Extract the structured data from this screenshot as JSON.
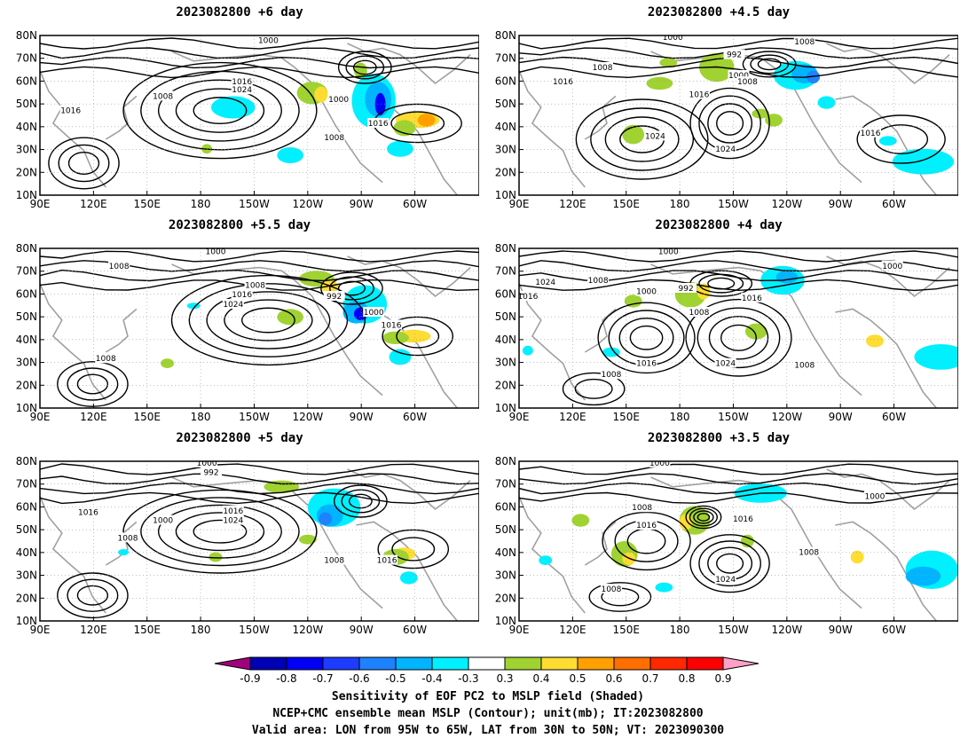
{
  "panels": [
    {
      "title": "2023082800 +6 day",
      "contours": [
        {
          "label": "1000",
          "tx": 0.52,
          "ty": 0.03
        },
        {
          "label": "1016",
          "tx": 0.46,
          "ty": 0.29
        },
        {
          "label": "1024",
          "tx": 0.46,
          "ty": 0.34
        },
        {
          "label": "1008",
          "tx": 0.28,
          "ty": 0.38
        },
        {
          "label": "1016",
          "tx": 0.07,
          "ty": 0.47
        },
        {
          "label": "1000",
          "tx": 0.68,
          "ty": 0.4
        },
        {
          "label": "1016",
          "tx": 0.77,
          "ty": 0.55
        },
        {
          "label": "1008",
          "tx": 0.67,
          "ty": 0.64
        }
      ]
    },
    {
      "title": "2023082800 +4.5 day",
      "contours": [
        {
          "label": "1000",
          "tx": 0.35,
          "ty": 0.01
        },
        {
          "label": "1008",
          "tx": 0.65,
          "ty": 0.04
        },
        {
          "label": "992",
          "tx": 0.49,
          "ty": 0.12
        },
        {
          "label": "1008",
          "tx": 0.19,
          "ty": 0.2
        },
        {
          "label": "1016",
          "tx": 0.1,
          "ty": 0.29
        },
        {
          "label": "1000",
          "tx": 0.5,
          "ty": 0.25
        },
        {
          "label": "1008",
          "tx": 0.52,
          "ty": 0.29
        },
        {
          "label": "1016",
          "tx": 0.41,
          "ty": 0.37
        },
        {
          "label": "1024",
          "tx": 0.31,
          "ty": 0.63
        },
        {
          "label": "1024",
          "tx": 0.47,
          "ty": 0.71
        },
        {
          "label": "1016",
          "tx": 0.8,
          "ty": 0.61
        }
      ]
    },
    {
      "title": "2023082800 +5.5 day",
      "contours": [
        {
          "label": "1000",
          "tx": 0.4,
          "ty": 0.02
        },
        {
          "label": "1008",
          "tx": 0.18,
          "ty": 0.11
        },
        {
          "label": "1008",
          "tx": 0.49,
          "ty": 0.23
        },
        {
          "label": "1016",
          "tx": 0.46,
          "ty": 0.29
        },
        {
          "label": "1024",
          "tx": 0.44,
          "ty": 0.35
        },
        {
          "label": "992",
          "tx": 0.67,
          "ty": 0.3
        },
        {
          "label": "1000",
          "tx": 0.76,
          "ty": 0.4
        },
        {
          "label": "1016",
          "tx": 0.8,
          "ty": 0.48
        },
        {
          "label": "1008",
          "tx": 0.15,
          "ty": 0.69
        }
      ]
    },
    {
      "title": "2023082800 +4 day",
      "contours": [
        {
          "label": "1000",
          "tx": 0.34,
          "ty": 0.02
        },
        {
          "label": "1024",
          "tx": 0.06,
          "ty": 0.21
        },
        {
          "label": "1008",
          "tx": 0.18,
          "ty": 0.2
        },
        {
          "label": "1016",
          "tx": 0.02,
          "ty": 0.3
        },
        {
          "label": "1000",
          "tx": 0.29,
          "ty": 0.27
        },
        {
          "label": "992",
          "tx": 0.38,
          "ty": 0.25
        },
        {
          "label": "1008",
          "tx": 0.41,
          "ty": 0.4
        },
        {
          "label": "1016",
          "tx": 0.53,
          "ty": 0.31
        },
        {
          "label": "1000",
          "tx": 0.85,
          "ty": 0.11
        },
        {
          "label": "1016",
          "tx": 0.29,
          "ty": 0.72
        },
        {
          "label": "1024",
          "tx": 0.47,
          "ty": 0.72
        },
        {
          "label": "1008",
          "tx": 0.65,
          "ty": 0.73
        },
        {
          "label": "1008",
          "tx": 0.21,
          "ty": 0.79
        }
      ]
    },
    {
      "title": "2023082800 +5 day",
      "contours": [
        {
          "label": "1000",
          "tx": 0.38,
          "ty": 0.01
        },
        {
          "label": "992",
          "tx": 0.39,
          "ty": 0.07
        },
        {
          "label": "1016",
          "tx": 0.11,
          "ty": 0.32
        },
        {
          "label": "1000",
          "tx": 0.28,
          "ty": 0.37
        },
        {
          "label": "1016",
          "tx": 0.44,
          "ty": 0.31
        },
        {
          "label": "1024",
          "tx": 0.44,
          "ty": 0.37
        },
        {
          "label": "1008",
          "tx": 0.2,
          "ty": 0.48
        },
        {
          "label": "1008",
          "tx": 0.67,
          "ty": 0.62
        },
        {
          "label": "1016",
          "tx": 0.79,
          "ty": 0.62
        }
      ]
    },
    {
      "title": "2023082800 +3.5 day",
      "contours": [
        {
          "label": "1000",
          "tx": 0.32,
          "ty": 0.01
        },
        {
          "label": "1008",
          "tx": 0.28,
          "ty": 0.29
        },
        {
          "label": "1016",
          "tx": 0.29,
          "ty": 0.4
        },
        {
          "label": "1016",
          "tx": 0.51,
          "ty": 0.36
        },
        {
          "label": "1000",
          "tx": 0.81,
          "ty": 0.22
        },
        {
          "label": "1008",
          "tx": 0.66,
          "ty": 0.57
        },
        {
          "label": "1024",
          "tx": 0.47,
          "ty": 0.74
        },
        {
          "label": "1008",
          "tx": 0.21,
          "ty": 0.8
        }
      ]
    }
  ],
  "lat_ticks": [
    "80N",
    "70N",
    "60N",
    "50N",
    "40N",
    "30N",
    "20N",
    "10N"
  ],
  "lon_ticks": [
    "90E",
    "120E",
    "150E",
    "180",
    "150W",
    "120W",
    "90W",
    "60W"
  ],
  "colorbar": {
    "labels": [
      "-0.9",
      "-0.8",
      "-0.7",
      "-0.6",
      "-0.5",
      "-0.4",
      "-0.3",
      "0.3",
      "0.4",
      "0.5",
      "0.6",
      "0.7",
      "0.8",
      "0.9"
    ],
    "colors": [
      "#a0007d",
      "#0000b4",
      "#0000f5",
      "#1e3cff",
      "#1e82ff",
      "#00b4ff",
      "#00f0ff",
      "#ffffff",
      "#a0d232",
      "#ffdc32",
      "#ffa000",
      "#ff6e00",
      "#ff2800",
      "#ff0000",
      "#ffa0c8"
    ]
  },
  "shading_colors": {
    "cyan": "#00f0ff",
    "lightblue": "#00b4ff",
    "blue": "#1e82ff",
    "darkblue": "#0000f5",
    "green": "#a0d232",
    "yellow": "#ffdc32",
    "orange": "#ffa000",
    "coastline": "#a0a0a0"
  },
  "caption": {
    "line1": "Sensitivity of EOF PC2 to MSLP field (Shaded)",
    "line2": "NCEP+CMC ensemble mean MSLP (Contour); unit(mb); IT:2023082800",
    "line3": "Valid area: LON from 95W to 65W, LAT from 30N to 50N; VT: 2023090300"
  }
}
